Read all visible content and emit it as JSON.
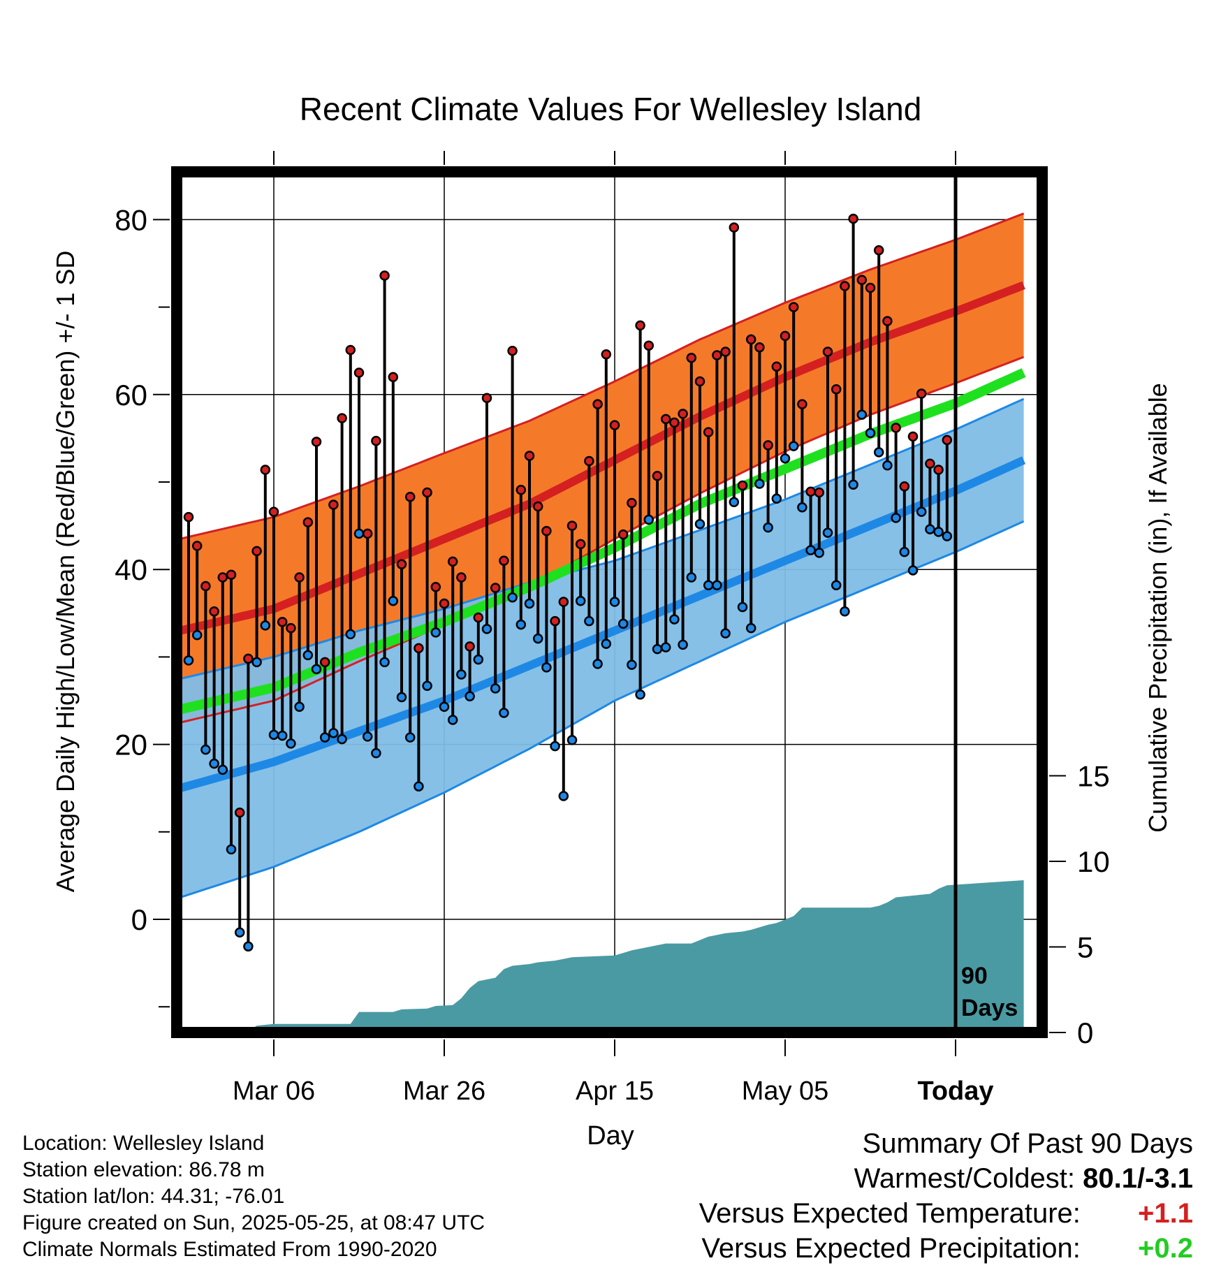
{
  "chart_data": {
    "type": "line",
    "title": "Recent Climate Values For Wellesley Island",
    "xlabel": "Day",
    "ylabel": "Average Daily High/Low/Mean (Red/Blue/Green) +/- 1 SD",
    "y2label": "Cumulative Precipitation (in), If Available",
    "ylim": [
      -12.5,
      86
    ],
    "y2lim": [
      0,
      30
    ],
    "xlim": [
      -11,
      88
    ],
    "x_tick_labels": [
      "Mar 06",
      "Mar 26",
      "Apr 15",
      "May 05",
      "Today"
    ],
    "x_tick_days": [
      0,
      20,
      40,
      60,
      80
    ],
    "y_ticks": [
      0,
      20,
      40,
      60,
      80
    ],
    "y2_ticks": [
      0,
      5,
      10,
      15
    ],
    "today_marker": {
      "day": 80,
      "label_line1": "90",
      "label_line2": "Days"
    },
    "normals": {
      "day": [
        -11,
        0,
        10,
        20,
        30,
        40,
        50,
        60,
        70,
        80,
        88
      ],
      "high_mean": [
        33,
        35.5,
        39.5,
        43.5,
        47.5,
        52.5,
        57.5,
        62,
        66,
        69.5,
        72.5
      ],
      "high_sd": [
        10.5,
        10.5,
        10,
        9.8,
        9.5,
        9,
        8.8,
        8.5,
        8.3,
        8.2,
        8.2
      ],
      "low_mean": [
        15,
        18,
        21.5,
        25,
        29,
        33,
        37,
        41,
        45,
        49,
        52.5
      ],
      "low_sd": [
        12.5,
        12,
        11.5,
        10.5,
        9.5,
        8,
        7.5,
        7,
        7,
        7,
        7
      ],
      "mean_line": [
        24,
        26.5,
        30.5,
        34,
        38,
        42.5,
        47.5,
        51.5,
        55.5,
        59,
        62.5
      ]
    },
    "series": [
      {
        "name": "High",
        "color": "#d42020",
        "values": [
          46,
          42.7,
          38.1,
          35.2,
          39.1,
          39.4,
          12.2,
          29.8,
          42.1,
          51.4,
          46.6,
          34.0,
          33.3,
          39.1,
          45.4,
          54.6,
          29.4,
          47.4,
          57.3,
          65.1,
          62.5,
          44.1,
          54.7,
          73.6,
          62.0,
          40.6,
          48.3,
          31.0,
          48.8,
          38.0,
          36.1,
          40.9,
          39.1,
          31.2,
          34.5,
          59.6,
          37.9,
          41.0,
          65.0,
          49.1,
          53.0,
          47.2,
          44.4,
          34.1,
          36.3,
          45.0,
          42.9,
          52.4,
          58.9,
          64.6,
          56.5,
          44.0,
          47.6,
          67.9,
          65.6,
          50.7,
          57.2,
          56.8,
          57.8,
          64.2,
          61.5,
          55.7,
          64.5,
          64.9,
          79.1,
          49.6,
          66.3,
          65.4,
          54.2,
          63.2,
          66.7,
          70.0,
          58.9,
          48.9,
          48.8,
          64.9,
          60.6,
          72.4,
          80.1,
          73.1,
          72.2,
          76.5,
          68.4,
          56.2,
          49.5,
          55.2,
          60.1,
          52.1,
          51.4,
          54.8
        ]
      },
      {
        "name": "Low",
        "color": "#1e88e5",
        "values": [
          29.6,
          32.5,
          19.4,
          17.8,
          17.1,
          8.0,
          -1.5,
          -3.1,
          29.4,
          33.6,
          21.1,
          21.0,
          20.1,
          24.3,
          30.2,
          28.6,
          20.8,
          21.3,
          20.6,
          32.6,
          44.1,
          20.9,
          19.0,
          29.4,
          36.4,
          25.4,
          20.8,
          15.2,
          26.7,
          32.8,
          24.3,
          22.8,
          28.0,
          25.5,
          29.7,
          33.2,
          26.4,
          23.6,
          36.8,
          33.7,
          36.1,
          32.1,
          28.8,
          19.8,
          14.1,
          20.5,
          36.4,
          34.1,
          29.2,
          31.5,
          36.3,
          33.8,
          29.1,
          25.7,
          45.7,
          30.9,
          31.1,
          34.3,
          31.4,
          39.1,
          45.2,
          38.2,
          38.2,
          32.7,
          47.7,
          35.7,
          33.3,
          49.8,
          44.8,
          48.1,
          52.7,
          54.1,
          47.1,
          42.2,
          41.9,
          44.2,
          38.2,
          35.2,
          49.7,
          57.7,
          55.6,
          53.4,
          51.9,
          45.9,
          42.0,
          39.9,
          46.6,
          44.6,
          44.3,
          43.8
        ]
      },
      {
        "name": "Precipitation",
        "color": "#4a9aa3",
        "cumulative": [
          [
            -11,
            0
          ],
          [
            -6,
            0.05
          ],
          [
            -3,
            0.1
          ],
          [
            -2,
            0.4
          ],
          [
            0,
            0.5
          ],
          [
            9,
            0.5
          ],
          [
            10,
            1.2
          ],
          [
            14,
            1.2
          ],
          [
            15,
            1.35
          ],
          [
            18,
            1.4
          ],
          [
            19,
            1.55
          ],
          [
            21,
            1.6
          ],
          [
            22,
            2.0
          ],
          [
            23,
            2.6
          ],
          [
            24,
            3.0
          ],
          [
            26,
            3.2
          ],
          [
            27,
            3.7
          ],
          [
            28,
            3.9
          ],
          [
            30,
            4.0
          ],
          [
            31,
            4.1
          ],
          [
            33,
            4.2
          ],
          [
            35,
            4.4
          ],
          [
            40,
            4.5
          ],
          [
            42,
            4.8
          ],
          [
            44,
            5.0
          ],
          [
            46,
            5.2
          ],
          [
            49,
            5.2
          ],
          [
            51,
            5.6
          ],
          [
            53,
            5.8
          ],
          [
            55,
            5.9
          ],
          [
            56,
            6.0
          ],
          [
            58,
            6.3
          ],
          [
            59,
            6.4
          ],
          [
            60,
            6.6
          ],
          [
            61,
            6.8
          ],
          [
            62,
            7.3
          ],
          [
            70,
            7.3
          ],
          [
            71,
            7.4
          ],
          [
            72,
            7.6
          ],
          [
            73,
            7.9
          ],
          [
            75,
            8.0
          ],
          [
            77,
            8.1
          ],
          [
            78,
            8.4
          ],
          [
            79,
            8.6
          ],
          [
            88,
            8.9
          ]
        ]
      }
    ]
  },
  "footer": {
    "location": "Location: Wellesley Island",
    "elevation": "Station elevation: 86.78 m",
    "latlon": "Station lat/lon: 44.31; -76.01",
    "created": "Figure created on Sun, 2025-05-25, at 08:47 UTC",
    "normals": "Climate Normals Estimated From 1990-2020"
  },
  "summary": {
    "title": "Summary Of Past 90 Days",
    "warm_cold_label": "Warmest/Coldest:",
    "warm_cold_value": "80.1/-3.1",
    "temp_label": "Versus Expected Temperature:",
    "temp_value": "+1.1",
    "precip_label": "Versus Expected Precipitation:",
    "precip_value": "+0.2",
    "colors": {
      "temp": "#d42020",
      "precip": "#22cc22"
    }
  }
}
